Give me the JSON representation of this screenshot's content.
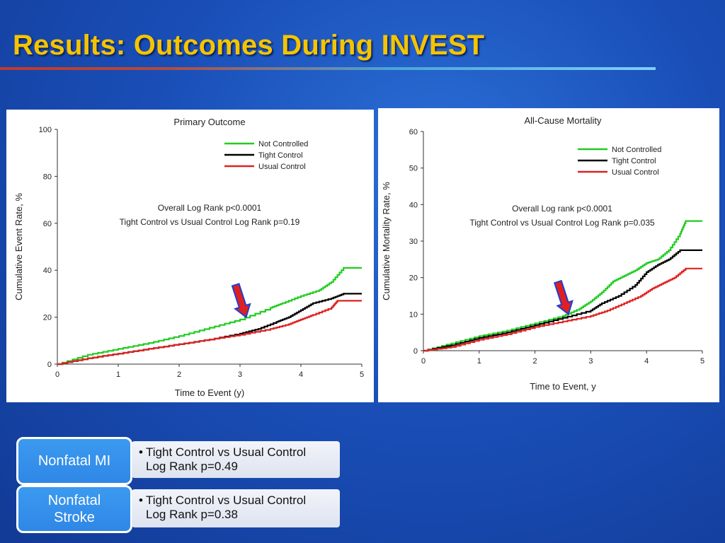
{
  "slide": {
    "title": "Results: Outcomes During INVEST"
  },
  "colors": {
    "not_controlled": "#22cc22",
    "tight_control": "#000000",
    "usual_control": "#dd2222",
    "arrow_fill": "#e02020",
    "arrow_stroke": "#1f3fd0"
  },
  "chart_data": [
    {
      "type": "line",
      "title": "Primary Outcome",
      "xlabel": "Time to Event (y)",
      "ylabel": "Cumulative Event Rate, %",
      "xlim": [
        0,
        5
      ],
      "ylim": [
        0,
        100
      ],
      "xticks": [
        0,
        1,
        2,
        3,
        4,
        5
      ],
      "yticks": [
        0,
        20,
        40,
        60,
        80,
        100
      ],
      "grid": false,
      "legend": "top-right",
      "annotations": [
        "Overall Log Rank p<0.0001",
        "Tight Control vs Usual Control Log Rank p=0.19"
      ],
      "arrow_at": {
        "x": 3.1,
        "y": 20
      },
      "series": [
        {
          "name": "Not Controlled",
          "x": [
            0,
            0.5,
            1,
            1.5,
            2,
            2.5,
            3,
            3.5,
            3.7,
            4,
            4.3,
            4.5,
            4.7,
            5
          ],
          "y": [
            0,
            4,
            6.5,
            9,
            12,
            15.5,
            19,
            24,
            26,
            29,
            31.5,
            35,
            41,
            41
          ]
        },
        {
          "name": "Tight Control",
          "x": [
            0,
            0.5,
            1,
            1.5,
            2,
            2.5,
            3,
            3.3,
            3.6,
            3.8,
            4,
            4.2,
            4.5,
            4.7,
            5
          ],
          "y": [
            0,
            2.5,
            4.5,
            6.5,
            8.5,
            10.5,
            13,
            15,
            18,
            20,
            23,
            26,
            28,
            30,
            30
          ]
        },
        {
          "name": "Usual Control",
          "x": [
            0,
            0.5,
            1,
            1.5,
            2,
            2.5,
            3,
            3.5,
            3.8,
            4,
            4.2,
            4.5,
            4.6,
            5
          ],
          "y": [
            0,
            2.5,
            4.5,
            6.5,
            8.5,
            10.5,
            12.5,
            15,
            17,
            19,
            21,
            24,
            27,
            27
          ]
        }
      ]
    },
    {
      "type": "line",
      "title": "All-Cause Mortality",
      "xlabel": "Time to Event, y",
      "ylabel": "Cumulative Mortality Rate, %",
      "xlim": [
        0,
        5
      ],
      "ylim": [
        0,
        60
      ],
      "xticks": [
        0,
        1,
        2,
        3,
        4,
        5
      ],
      "yticks": [
        0,
        10,
        20,
        30,
        40,
        50,
        60
      ],
      "grid": false,
      "legend": "top-right",
      "annotations": [
        "Overall Log rank p<0.0001",
        "Tight Control vs Usual Control Log Rank p=0.035"
      ],
      "arrow_at": {
        "x": 2.6,
        "y": 10
      },
      "series": [
        {
          "name": "Not Controlled",
          "x": [
            0,
            0.5,
            1,
            1.5,
            2,
            2.5,
            2.8,
            3,
            3.2,
            3.4,
            3.6,
            3.8,
            4,
            4.2,
            4.4,
            4.6,
            4.7,
            5
          ],
          "y": [
            0,
            2,
            4,
            5.5,
            7.5,
            9.5,
            11.5,
            13.5,
            16,
            19,
            20.5,
            22,
            24,
            25,
            27.5,
            32,
            35.5,
            35.5
          ]
        },
        {
          "name": "Tight Control",
          "x": [
            0,
            0.5,
            1,
            1.5,
            2,
            2.5,
            3,
            3.2,
            3.5,
            3.8,
            4,
            4.2,
            4.4,
            4.6,
            5
          ],
          "y": [
            0,
            1.5,
            3.5,
            5,
            7,
            9,
            11,
            13,
            15,
            18,
            21.5,
            23.5,
            25,
            27.5,
            27.5
          ]
        },
        {
          "name": "Usual Control",
          "x": [
            0,
            0.5,
            1,
            1.5,
            2,
            2.5,
            3,
            3.3,
            3.6,
            3.9,
            4.1,
            4.3,
            4.5,
            4.7,
            5
          ],
          "y": [
            0,
            1,
            3,
            4.5,
            6.5,
            8,
            9.5,
            11,
            13,
            15,
            17,
            18.5,
            20,
            22.5,
            22.5
          ]
        }
      ]
    }
  ],
  "outcomes": [
    {
      "label": "Nonfatal MI",
      "bullet": "•",
      "line1": "Tight Control vs Usual Control",
      "line2": "Log Rank p=0.49"
    },
    {
      "label": "Nonfatal Stroke",
      "bullet": "•",
      "line1": "Tight Control vs Usual Control",
      "line2": "Log Rank p=0.38"
    }
  ]
}
